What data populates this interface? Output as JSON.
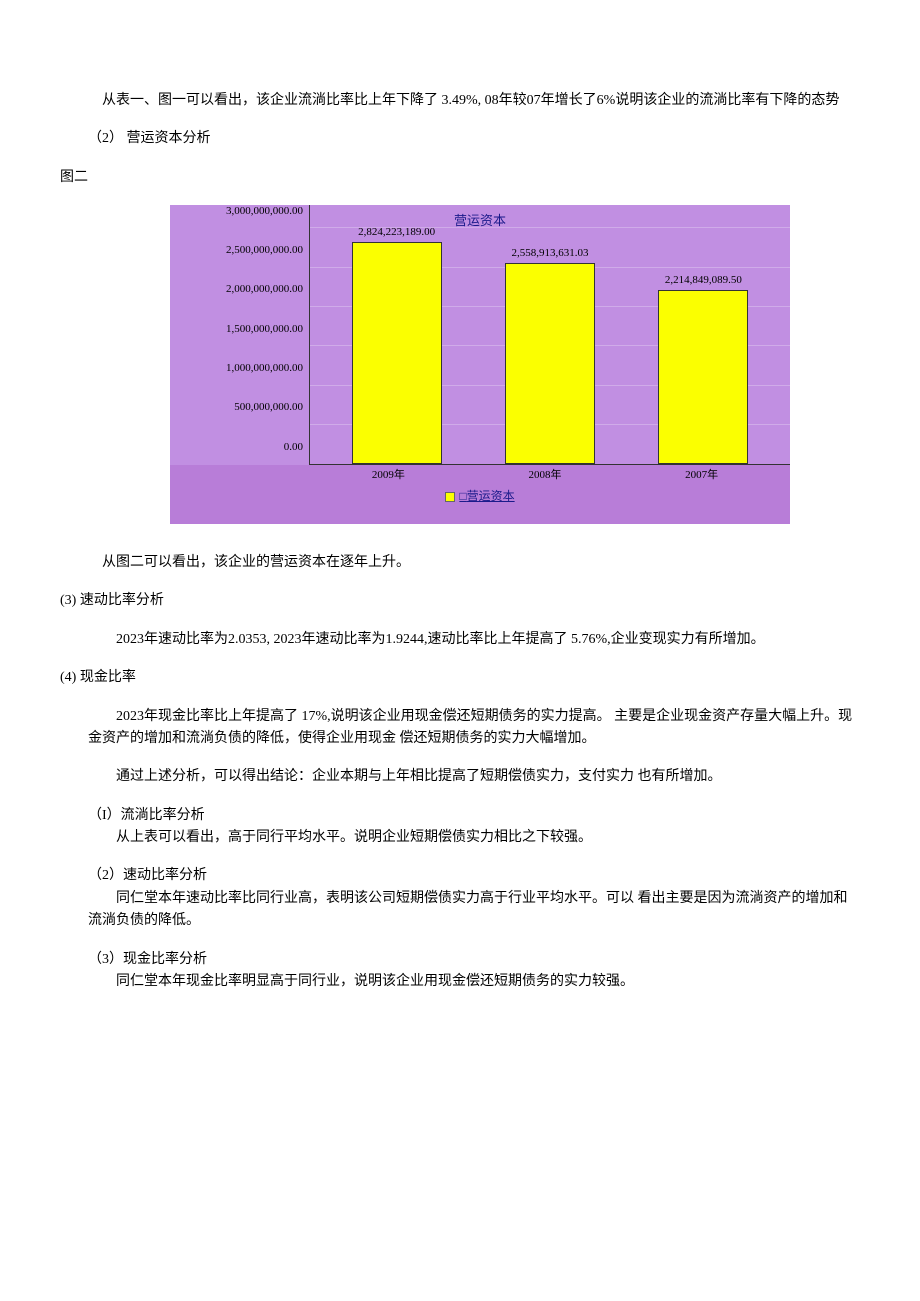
{
  "intro": {
    "p1": "从表一、图一可以看出，该企业流淌比率比上年下降了 3.49%, 08年较07年增长了6%说明该企业的流淌比率有下降的态势"
  },
  "section2": {
    "label": "（2）  营运资本分析",
    "figure_label": "图二",
    "conclusion": "从图二可以看出，该企业的营运资本在逐年上升。"
  },
  "chart": {
    "title": "营运资本",
    "bar_color": "#fbff00",
    "background_color": "#c18fe2",
    "outer_background_color": "#b87dd8",
    "ymax": 3000000000,
    "yticks": [
      "0.00",
      "500,000,000.00",
      "1,000,000,000.00",
      "1,500,000,000.00",
      "2,000,000,000.00",
      "2,500,000,000.00",
      "3,000,000,000.00"
    ],
    "series": [
      {
        "category": "2009年",
        "value": 2824223189.0,
        "label": "2,824,223,189.00"
      },
      {
        "category": "2008年",
        "value": 2558913631.03,
        "label": "2,558,913,631.03"
      },
      {
        "category": "2007年",
        "value": 2214849089.5,
        "label": "2,214,849,089.50"
      }
    ],
    "legend": "营运资本"
  },
  "section3": {
    "label": "(3)   速动比率分析",
    "body": "2023年速动比率为2.0353, 2023年速动比率为1.9244,速动比率比上年提高了 5.76%,企业变现实力有所增加。"
  },
  "section4": {
    "label": "(4)  现金比率",
    "p1": "2023年现金比率比上年提高了 17%,说明该企业用现金偿还短期债务的实力提高。 主要是企业现金资产存量大幅上升。现金资产的增加和流淌负债的降低，使得企业用现金 偿还短期债务的实力大幅增加。",
    "p2": "通过上述分析，可以得出结论：企业本期与上年相比提高了短期偿债实力，支付实力 也有所增加。"
  },
  "sub1": {
    "title": "（I）流淌比率分析",
    "body": "从上表可以看出，高于同行平均水平。说明企业短期偿债实力相比之下较强。"
  },
  "sub2": {
    "title": "（2）速动比率分析",
    "body": "同仁堂本年速动比率比同行业高，表明该公司短期偿债实力高于行业平均水平。可以 看出主要是因为流淌资产的增加和流淌负债的降低。"
  },
  "sub3": {
    "title": "（3）现金比率分析",
    "body": "同仁堂本年现金比率明显高于同行业，说明该企业用现金偿还短期债务的实力较强。"
  }
}
